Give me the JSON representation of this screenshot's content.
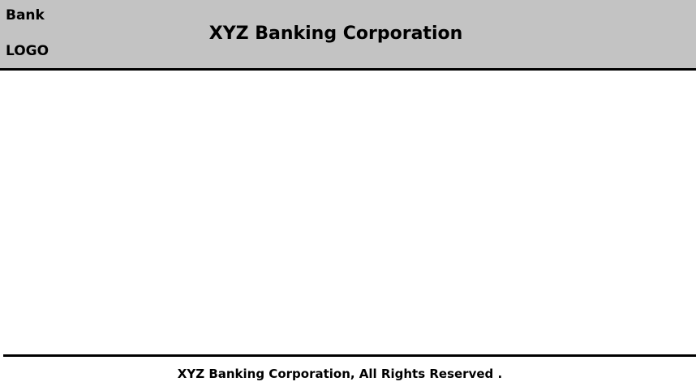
{
  "header": {
    "logo_line1": "Bank",
    "logo_line2": "LOGO",
    "title": "XYZ Banking Corporation",
    "background_color": "#c3c3c3"
  },
  "footer": {
    "copyright": "XYZ Banking Corporation, All Rights Reserved ."
  }
}
